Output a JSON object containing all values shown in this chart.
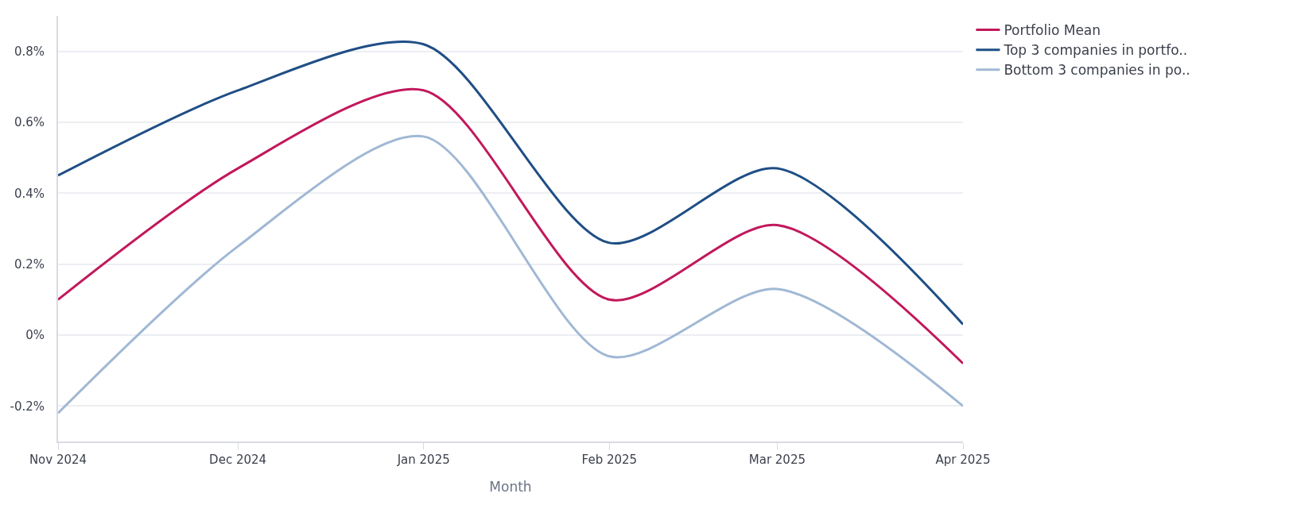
{
  "chart_data": {
    "type": "line",
    "xlabel": "Month",
    "x": [
      "2024-11",
      "2024-12",
      "2025-01",
      "2025-02",
      "2025-03",
      "2025-04"
    ],
    "series": [
      {
        "name": "Portfolio Mean",
        "color": "#c2185b",
        "values": [
          0.1,
          0.47,
          0.69,
          0.1,
          0.31,
          -0.08
        ]
      },
      {
        "name": "Top 3 companies in portfo..",
        "color": "#1f4e85",
        "values": [
          0.45,
          0.69,
          0.82,
          0.26,
          0.47,
          0.03
        ]
      },
      {
        "name": "Bottom 3 companies in po..",
        "color": "#a0b8d4",
        "values": [
          -0.22,
          0.25,
          0.56,
          -0.06,
          0.13,
          -0.2
        ]
      }
    ],
    "xlim": [
      "2024-11",
      "2025-04"
    ],
    "xticks": [
      {
        "value": "2024-11",
        "label": "Nov 2024"
      },
      {
        "value": "2024-12",
        "label": "Dec 2024"
      },
      {
        "value": "2025-01",
        "label": "Jan 2025"
      },
      {
        "value": "2025-02",
        "label": "Feb 2025"
      },
      {
        "value": "2025-03",
        "label": "Mar 2025"
      },
      {
        "value": "2025-04",
        "label": "Apr 2025"
      }
    ],
    "ylim": [
      -0.3,
      0.9
    ],
    "yticks": [
      {
        "value": -0.2,
        "label": "-0.2%"
      },
      {
        "value": 0,
        "label": "0%"
      },
      {
        "value": 0.2,
        "label": "0.2%"
      },
      {
        "value": 0.4,
        "label": "0.4%"
      },
      {
        "value": 0.6,
        "label": "0.6%"
      },
      {
        "value": 0.8,
        "label": "0.8%"
      }
    ],
    "grid": "y",
    "legend": "top right",
    "marker": "none",
    "line_style": "solid"
  }
}
